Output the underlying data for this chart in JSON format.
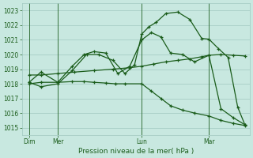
{
  "bg_color": "#c8e8e0",
  "grid_color": "#a0c8c0",
  "line_color": "#1a5c1a",
  "xlabel": "Pression niveau de la mer( hPa )",
  "ylim": [
    1014.5,
    1023.5
  ],
  "yticks": [
    1015,
    1016,
    1017,
    1018,
    1019,
    1020,
    1021,
    1022,
    1023
  ],
  "xlim": [
    0,
    9.5
  ],
  "day_positions": [
    0.3,
    1.5,
    5.0,
    7.8
  ],
  "day_labels": [
    "Dim",
    "Mer",
    "Lun",
    "Mar"
  ],
  "vline_positions": [
    0.3,
    1.5,
    5.0,
    7.8
  ],
  "lines": [
    {
      "x": [
        0.3,
        0.8,
        1.5,
        2.2,
        3.0,
        3.8,
        4.5,
        5.0,
        5.5,
        6.0,
        6.5,
        7.0,
        7.5,
        7.8,
        8.3,
        8.8,
        9.3
      ],
      "y": [
        1018.6,
        1018.6,
        1018.7,
        1018.8,
        1018.9,
        1019.0,
        1019.1,
        1019.2,
        1019.35,
        1019.5,
        1019.6,
        1019.7,
        1019.85,
        1019.95,
        1020.0,
        1019.95,
        1019.9
      ]
    },
    {
      "x": [
        0.3,
        0.8,
        1.5,
        2.1,
        2.7,
        3.2,
        3.8,
        4.3,
        4.7,
        5.0,
        5.3,
        5.6,
        6.0,
        6.5,
        7.0,
        7.5,
        7.8,
        8.2,
        8.6,
        9.0,
        9.3
      ],
      "y": [
        1018.1,
        1017.8,
        1018.0,
        1018.9,
        1020.0,
        1020.0,
        1019.6,
        1018.7,
        1019.3,
        1021.4,
        1021.9,
        1022.2,
        1022.8,
        1022.9,
        1022.4,
        1021.1,
        1021.05,
        1020.4,
        1019.8,
        1016.4,
        1015.2
      ]
    },
    {
      "x": [
        0.3,
        0.8,
        1.5,
        2.1,
        2.6,
        3.0,
        3.5,
        4.0,
        4.5,
        5.0,
        5.4,
        5.8,
        6.2,
        6.7,
        7.2,
        7.8,
        8.3,
        8.8,
        9.3
      ],
      "y": [
        1018.1,
        1018.8,
        1018.1,
        1019.2,
        1020.0,
        1020.2,
        1020.1,
        1018.7,
        1019.2,
        1021.0,
        1021.5,
        1021.2,
        1020.1,
        1020.0,
        1019.5,
        1019.95,
        1016.3,
        1015.7,
        1015.2
      ]
    },
    {
      "x": [
        0.3,
        0.8,
        1.5,
        2.1,
        2.6,
        3.0,
        3.5,
        3.9,
        4.3,
        5.0,
        5.4,
        5.8,
        6.2,
        6.7,
        7.2,
        7.8,
        8.3,
        8.8,
        9.3
      ],
      "y": [
        1018.0,
        1018.1,
        1018.1,
        1018.15,
        1018.15,
        1018.1,
        1018.05,
        1018.0,
        1018.0,
        1018.0,
        1017.5,
        1017.0,
        1016.5,
        1016.2,
        1016.0,
        1015.8,
        1015.5,
        1015.3,
        1015.15
      ]
    }
  ]
}
